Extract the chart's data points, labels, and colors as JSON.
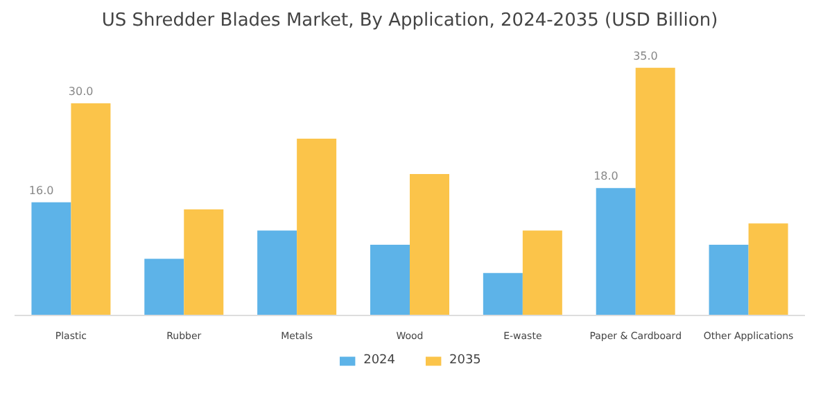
{
  "chart_data": {
    "type": "bar",
    "title": "US Shredder Blades Market, By Application, 2024-2035 (USD Billion)",
    "categories": [
      "Plastic",
      "Rubber",
      "Metals",
      "Wood",
      "E-waste",
      "Paper & Cardboard",
      "Other Applications"
    ],
    "series": [
      {
        "name": "2024",
        "color": "#5db3e8",
        "values": [
          16.0,
          8.0,
          12.0,
          10.0,
          6.0,
          18.0,
          10.0
        ],
        "value_labels": [
          "16.0",
          null,
          null,
          null,
          null,
          "18.0",
          null
        ]
      },
      {
        "name": "2035",
        "color": "#fbc44a",
        "values": [
          30.0,
          15.0,
          25.0,
          20.0,
          12.0,
          35.0,
          13.0
        ],
        "value_labels": [
          "30.0",
          null,
          null,
          null,
          null,
          "35.0",
          null
        ]
      }
    ],
    "legend": "bottom",
    "grid": false
  }
}
